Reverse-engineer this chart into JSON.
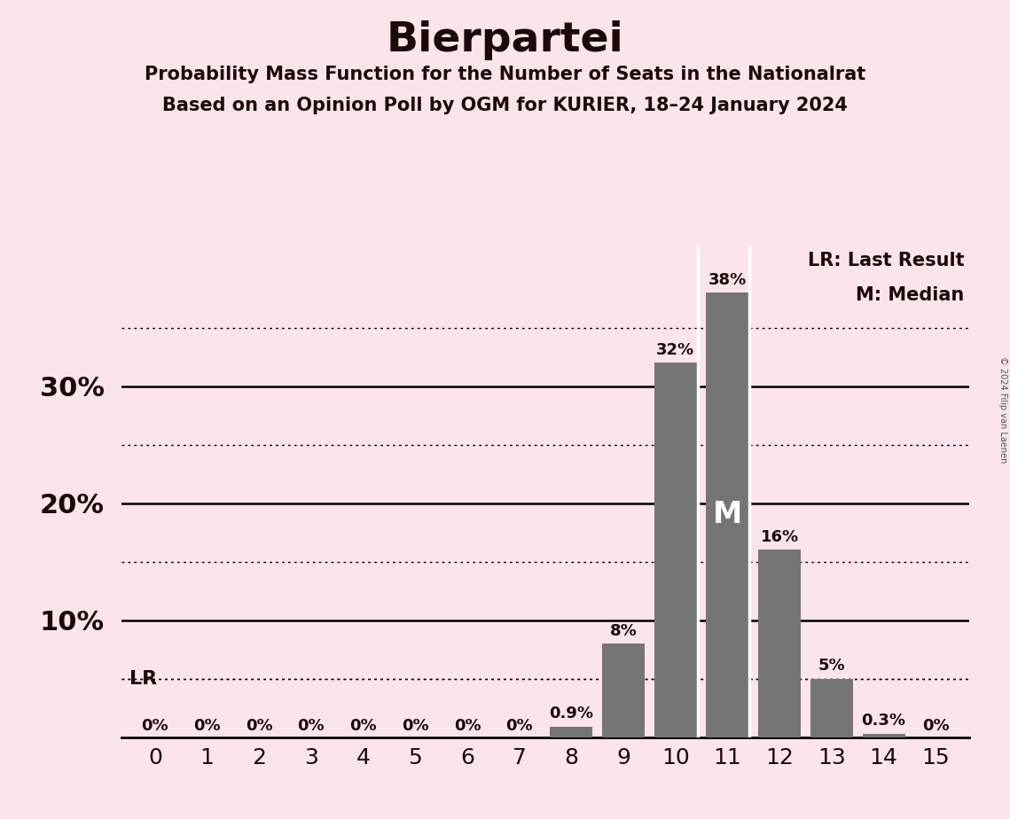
{
  "title": "Bierpartei",
  "subtitle1": "Probability Mass Function for the Number of Seats in the Nationalrat",
  "subtitle2": "Based on an Opinion Poll by OGM for KURIER, 18–24 January 2024",
  "copyright": "© 2024 Filip van Laenen",
  "categories": [
    0,
    1,
    2,
    3,
    4,
    5,
    6,
    7,
    8,
    9,
    10,
    11,
    12,
    13,
    14,
    15
  ],
  "values": [
    0,
    0,
    0,
    0,
    0,
    0,
    0,
    0,
    0.9,
    8,
    32,
    38,
    16,
    5,
    0.3,
    0
  ],
  "labels": [
    "0%",
    "0%",
    "0%",
    "0%",
    "0%",
    "0%",
    "0%",
    "0%",
    "0.9%",
    "8%",
    "32%",
    "38%",
    "16%",
    "5%",
    "0.3%",
    "0%"
  ],
  "bar_color": "#757575",
  "background_color": "#fce4ec",
  "text_color": "#1a0a0a",
  "median_seat": 11,
  "lr_value": 5,
  "legend_text1": "LR: Last Result",
  "legend_text2": "M: Median",
  "ylim": [
    0,
    42
  ],
  "solid_yticks": [
    10,
    20,
    30
  ],
  "dotted_yticks": [
    5,
    15,
    25,
    35
  ],
  "white_dividers": [
    10.425,
    11.425
  ],
  "bar_width": 0.82
}
